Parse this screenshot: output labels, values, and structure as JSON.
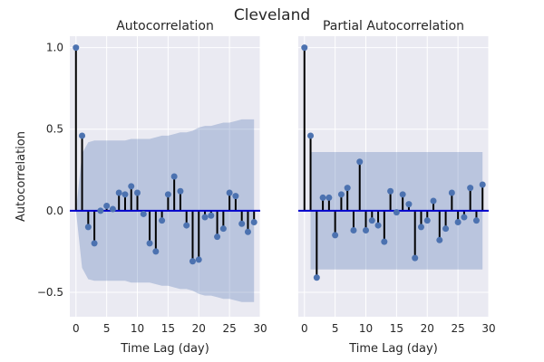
{
  "figure": {
    "suptitle": "Cleveland",
    "background": "#ffffff",
    "axes_background": "#eaeaf2",
    "grid_color": "#ffffff",
    "stem_color": "#000000",
    "marker_color": "#4c72b0",
    "baseline_color": "#0000cc",
    "band_color": "#4c72b0"
  },
  "chart_data": [
    {
      "type": "stem",
      "title": "Autocorrelation",
      "xlabel": "Time Lag (day)",
      "ylabel": "Autocorrelation",
      "xlim": [
        -1,
        30
      ],
      "ylim": [
        -0.65,
        1.07
      ],
      "xticks": [
        0,
        5,
        10,
        15,
        20,
        25,
        30
      ],
      "yticks": [
        -0.5,
        0.0,
        0.5,
        1.0
      ],
      "ytick_labels": [
        "−0.5",
        "0.0",
        "0.5",
        "1.0"
      ],
      "grid": true,
      "x": [
        0,
        1,
        2,
        3,
        4,
        5,
        6,
        7,
        8,
        9,
        10,
        11,
        12,
        13,
        14,
        15,
        16,
        17,
        18,
        19,
        20,
        21,
        22,
        23,
        24,
        25,
        26,
        27,
        28,
        29
      ],
      "values": [
        1.0,
        0.46,
        -0.1,
        -0.2,
        0.0,
        0.03,
        0.01,
        0.11,
        0.1,
        0.15,
        0.11,
        -0.02,
        -0.2,
        -0.25,
        -0.06,
        0.1,
        0.21,
        0.12,
        -0.09,
        -0.31,
        -0.3,
        -0.04,
        -0.03,
        -0.16,
        -0.11,
        0.11,
        0.09,
        -0.08,
        -0.13,
        -0.07
      ],
      "confidence_band": {
        "x": [
          0,
          1,
          2,
          3,
          4,
          5,
          6,
          7,
          8,
          9,
          10,
          11,
          12,
          13,
          14,
          15,
          16,
          17,
          18,
          19,
          20,
          21,
          22,
          23,
          24,
          25,
          26,
          27,
          28,
          29
        ],
        "upper": [
          0.0,
          0.35,
          0.42,
          0.43,
          0.43,
          0.43,
          0.43,
          0.43,
          0.43,
          0.44,
          0.44,
          0.44,
          0.44,
          0.45,
          0.46,
          0.46,
          0.47,
          0.48,
          0.48,
          0.49,
          0.51,
          0.52,
          0.52,
          0.53,
          0.54,
          0.54,
          0.55,
          0.56,
          0.56,
          0.56
        ],
        "lower": [
          0.0,
          -0.35,
          -0.42,
          -0.43,
          -0.43,
          -0.43,
          -0.43,
          -0.43,
          -0.43,
          -0.44,
          -0.44,
          -0.44,
          -0.44,
          -0.45,
          -0.46,
          -0.46,
          -0.47,
          -0.48,
          -0.48,
          -0.49,
          -0.51,
          -0.52,
          -0.52,
          -0.53,
          -0.54,
          -0.54,
          -0.55,
          -0.56,
          -0.56,
          -0.56
        ]
      }
    },
    {
      "type": "stem",
      "title": "Partial Autocorrelation",
      "xlabel": "Time Lag (day)",
      "ylabel": "",
      "xlim": [
        -1,
        30
      ],
      "ylim": [
        -0.65,
        1.07
      ],
      "xticks": [
        0,
        5,
        10,
        15,
        20,
        25,
        30
      ],
      "yticks": [
        -0.5,
        0.0,
        0.5,
        1.0
      ],
      "show_yticklabels": false,
      "grid": true,
      "x": [
        0,
        1,
        2,
        3,
        4,
        5,
        6,
        7,
        8,
        9,
        10,
        11,
        12,
        13,
        14,
        15,
        16,
        17,
        18,
        19,
        20,
        21,
        22,
        23,
        24,
        25,
        26,
        27,
        28,
        29
      ],
      "values": [
        1.0,
        0.46,
        -0.41,
        0.08,
        0.08,
        -0.15,
        0.1,
        0.14,
        -0.12,
        0.3,
        -0.12,
        -0.06,
        -0.09,
        -0.19,
        0.12,
        -0.01,
        0.1,
        0.04,
        -0.29,
        -0.1,
        -0.06,
        0.06,
        -0.18,
        -0.11,
        0.11,
        -0.07,
        -0.04,
        0.14,
        -0.06,
        0.16
      ],
      "confidence_band": {
        "x": [
          1,
          29
        ],
        "upper": [
          0.36,
          0.36
        ],
        "lower": [
          -0.36,
          -0.36
        ]
      }
    }
  ]
}
